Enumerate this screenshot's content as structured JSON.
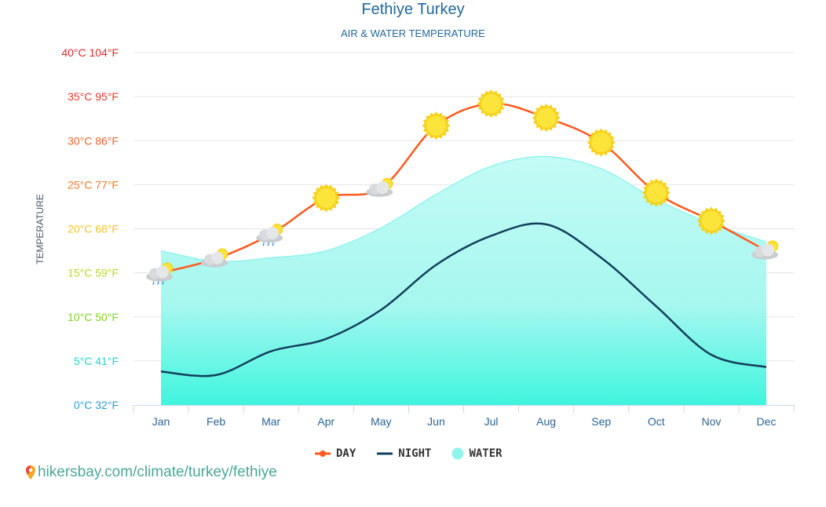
{
  "chart_data": {
    "type": "line",
    "title": "Fethiye Turkey",
    "subtitle": "AIR & WATER TEMPERATURE",
    "ylabel": "TEMPERATURE",
    "ylim": [
      0,
      40
    ],
    "yticks": [
      {
        "value": 0,
        "label": "0°C 32°F",
        "color": "#2a9fd8"
      },
      {
        "value": 5,
        "label": "5°C 41°F",
        "color": "#22d6c8"
      },
      {
        "value": 10,
        "label": "10°C 50°F",
        "color": "#7ed321"
      },
      {
        "value": 15,
        "label": "15°C 59°F",
        "color": "#b8d92a"
      },
      {
        "value": 20,
        "label": "20°C 68°F",
        "color": "#f5c330"
      },
      {
        "value": 25,
        "label": "25°C 77°F",
        "color": "#f5782a"
      },
      {
        "value": 30,
        "label": "30°C 86°F",
        "color": "#f5652a"
      },
      {
        "value": 35,
        "label": "35°C 95°F",
        "color": "#ee3a2e"
      },
      {
        "value": 40,
        "label": "40°C 104°F",
        "color": "#e82a2a"
      }
    ],
    "categories": [
      "Jan",
      "Feb",
      "Mar",
      "Apr",
      "May",
      "Jun",
      "Jul",
      "Aug",
      "Sep",
      "Oct",
      "Nov",
      "Dec"
    ],
    "grid": true,
    "legend_position": "bottom",
    "series": [
      {
        "name": "DAY",
        "color": "#ff5a1f",
        "values": [
          15.0,
          16.6,
          19.4,
          23.5,
          24.6,
          31.7,
          34.2,
          32.6,
          29.8,
          24.1,
          20.9,
          17.5
        ]
      },
      {
        "name": "NIGHT",
        "color": "#123f5c",
        "values": [
          3.8,
          3.4,
          6.1,
          7.5,
          10.8,
          15.9,
          19.2,
          20.5,
          16.7,
          11.2,
          5.7,
          4.3
        ]
      },
      {
        "name": "WATER",
        "color": "#8ff5ec",
        "type": "area",
        "values": [
          17.5,
          16.3,
          16.7,
          17.5,
          20.1,
          23.9,
          27.1,
          28.2,
          26.8,
          23.3,
          20.6,
          18.5
        ]
      }
    ],
    "weather_icons": [
      "cloud-rain-sun-icon",
      "cloud-sun-icon",
      "cloud-rain-sun-icon",
      "sun-icon",
      "cloud-sun-icon",
      "sun-icon",
      "sun-icon",
      "sun-icon",
      "sun-icon",
      "sun-icon",
      "sun-icon",
      "cloud-sun-icon"
    ]
  },
  "source": {
    "text": "hikersbay.com/climate/turkey/fethiye",
    "icon": "map-pin-icon"
  }
}
